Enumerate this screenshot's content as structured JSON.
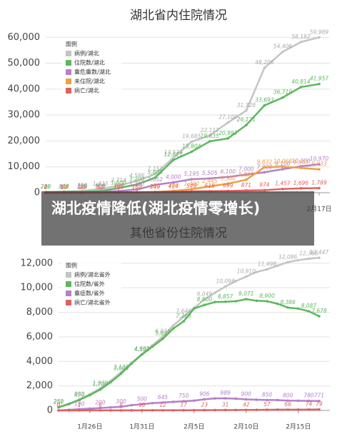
{
  "chart_data": [
    {
      "type": "line",
      "title": "湖北省内住院情况",
      "legend_title": "图例",
      "categories": [
        null,
        null,
        null,
        null,
        null,
        null,
        null,
        null,
        null,
        null,
        null,
        null,
        null,
        null,
        null,
        "2月17日"
      ],
      "ylim": [
        0,
        62000
      ],
      "yticks": [
        0,
        {
          "value": 10000,
          "label": "10,000"
        },
        {
          "value": 20000,
          "label": "20,000"
        },
        {
          "value": 30000,
          "label": "30,000"
        },
        {
          "value": 40000,
          "label": "40,000"
        },
        {
          "value": 50000,
          "label": "50,000"
        },
        {
          "value": 60000,
          "label": "60,000"
        }
      ],
      "grid": true,
      "series": [
        {
          "name": "病例/湖北",
          "color": "#c4c4c4",
          "values": [
            270,
            444,
            729,
            1423,
            2714,
            4586,
            7153,
            13522,
            19665,
            22112,
            27100,
            31728,
            48206,
            54406,
            58182,
            59989
          ],
          "value_labels": [
            "270",
            "444",
            "729",
            "1,423",
            "2,714",
            "4,586",
            "7,153",
            "13,522",
            "19,665",
            "22,112",
            "27,100",
            "31,728",
            "48,206",
            "54,406",
            "58,182",
            "59,989"
          ]
        },
        {
          "name": "住院数/湖北",
          "color": "#5cb85c",
          "values": [
            239,
            338,
            399,
            658,
            1800,
            3200,
            5800,
            12627,
            15804,
            19835,
            20993,
            26121,
            33693,
            36719,
            40814,
            41957
          ],
          "value_labels": [
            "239",
            "338",
            "399",
            "658",
            "1,800",
            "3,200",
            "5,800",
            "12,627",
            "15,804",
            "19,835",
            "20,993",
            "26,121",
            "33,693",
            "36,719",
            "40,814",
            "41,957"
          ]
        },
        {
          "name": "重危重数/湖北",
          "color": "#b57fc9",
          "values": [
            0,
            60,
            120,
            300,
            700,
            1200,
            3052,
            4000,
            5195,
            5505,
            6100,
            7000,
            7900,
            9100,
            10200,
            10970
          ],
          "value_labels": [
            "0",
            "60",
            "120",
            "300",
            "700",
            "1,200",
            "3,052",
            "4,000",
            "5,195",
            "5,505",
            "6,100",
            "7,000",
            "7,900",
            "9,100",
            "10,200",
            "10,970"
          ]
        },
        {
          "name": "未住院/湖北",
          "color": "#f0a040",
          "values": [
            0,
            10,
            20,
            40,
            80,
            150,
            300,
            700,
            1400,
            2445,
            3500,
            5000,
            9832,
            10068,
            9583,
            9033
          ],
          "value_labels": [
            "0",
            "10",
            "20",
            "40",
            "80",
            "150",
            "300",
            "700",
            "1,400",
            "2,445",
            "3,500",
            "5,000",
            "9,832",
            "10,068",
            "9,583",
            "9,033"
          ]
        },
        {
          "name": "病亡/湖北",
          "color": "#e06060",
          "values": [
            0,
            17,
            24,
            52,
            100,
            162,
            249,
            414,
            549,
            618,
            699,
            871,
            974,
            1457,
            1696,
            1789
          ],
          "value_labels": [
            "0",
            "17",
            "24",
            "52",
            "100",
            "162",
            "249",
            "414",
            "549",
            "618",
            "699",
            "871",
            "974",
            "1,457",
            "1,696",
            "1,789"
          ]
        }
      ]
    },
    {
      "type": "line",
      "title": "其他省份住院情况",
      "legend_title": "图例",
      "categories": [
        null,
        null,
        null,
        "1月26日",
        null,
        null,
        null,
        null,
        "1月31日",
        null,
        null,
        null,
        null,
        "2月5日",
        null,
        null,
        null,
        null,
        "2月10日",
        null,
        null,
        null,
        null,
        "2月15日",
        null,
        null
      ],
      "ylim": [
        0,
        12800
      ],
      "yticks": [
        0,
        {
          "value": 2000,
          "label": "2,000"
        },
        {
          "value": 4000,
          "label": "4,000"
        },
        {
          "value": 6000,
          "label": "6,000"
        },
        {
          "value": 8000,
          "label": "8,000"
        },
        {
          "value": 10000,
          "label": "10,000"
        },
        {
          "value": 12000,
          "label": "12,000"
        }
      ],
      "grid": true,
      "series": [
        {
          "name": "病例/湖北省外",
          "color": "#c4c4c4",
          "values": [
            281,
            558,
            900,
            1321,
            1800,
            2420,
            3125,
            3886,
            4600,
            5306,
            6028,
            6916,
            7646,
            8353,
            9049,
            9593,
            10098,
            10540,
            10910,
            11287,
            11498,
            11800,
            12086,
            12251,
            12366,
            12447
          ],
          "value_labels": [
            "281",
            "558",
            "900",
            "1,321",
            "1,800",
            "2,420",
            "3,125",
            "3,886",
            "4,600",
            "5,306",
            "6,028",
            "6,916",
            "7,646",
            "8,353",
            "9,049",
            "9,593",
            "10,098",
            "10,540",
            "10,910",
            "11,287",
            "11,498",
            "11,800",
            "12,086",
            "12,251",
            "12,366",
            "12,447"
          ]
        },
        {
          "name": "住院数/省外",
          "color": "#5cb85c",
          "values": [
            250,
            520,
            850,
            1250,
            1700,
            2300,
            3000,
            3822,
            4551,
            5200,
            5837,
            6669,
            7263,
            8308,
            8600,
            8835,
            8857,
            8900,
            9071,
            8942,
            8900,
            8698,
            8386,
            8300,
            8087,
            7678
          ],
          "value_labels": [
            "250",
            "520",
            "850",
            "1,250",
            "1,700",
            "2,300",
            "3,000",
            "3,822",
            "4,551",
            "5,200",
            "5,837",
            "6,669",
            "7,263",
            "8,308",
            "8,600",
            "8,835",
            "8,857",
            "8,900",
            "9,071",
            "8,942",
            "8,900",
            "8,698",
            "8,386",
            "8,300",
            "8,087",
            "7,678"
          ]
        },
        {
          "name": "重症数/省外",
          "color": "#b57fc9",
          "values": [
            0,
            50,
            100,
            150,
            200,
            250,
            300,
            433,
            500,
            595,
            645,
            699,
            750,
            800,
            906,
            979,
            989,
            963,
            900,
            876,
            850,
            847,
            800,
            790,
            780,
            771
          ]
        },
        {
          "name": "病亡/湖北省外",
          "color": "#e06060",
          "values": [
            0,
            0,
            1,
            4,
            6,
            7,
            8,
            9,
            10,
            11,
            12,
            15,
            17,
            19,
            23,
            28,
            31,
            37,
            42,
            45,
            57,
            62,
            66,
            69,
            74,
            79
          ]
        }
      ]
    }
  ],
  "banner": "湖北疫情降低(湖北疫情零增长)"
}
